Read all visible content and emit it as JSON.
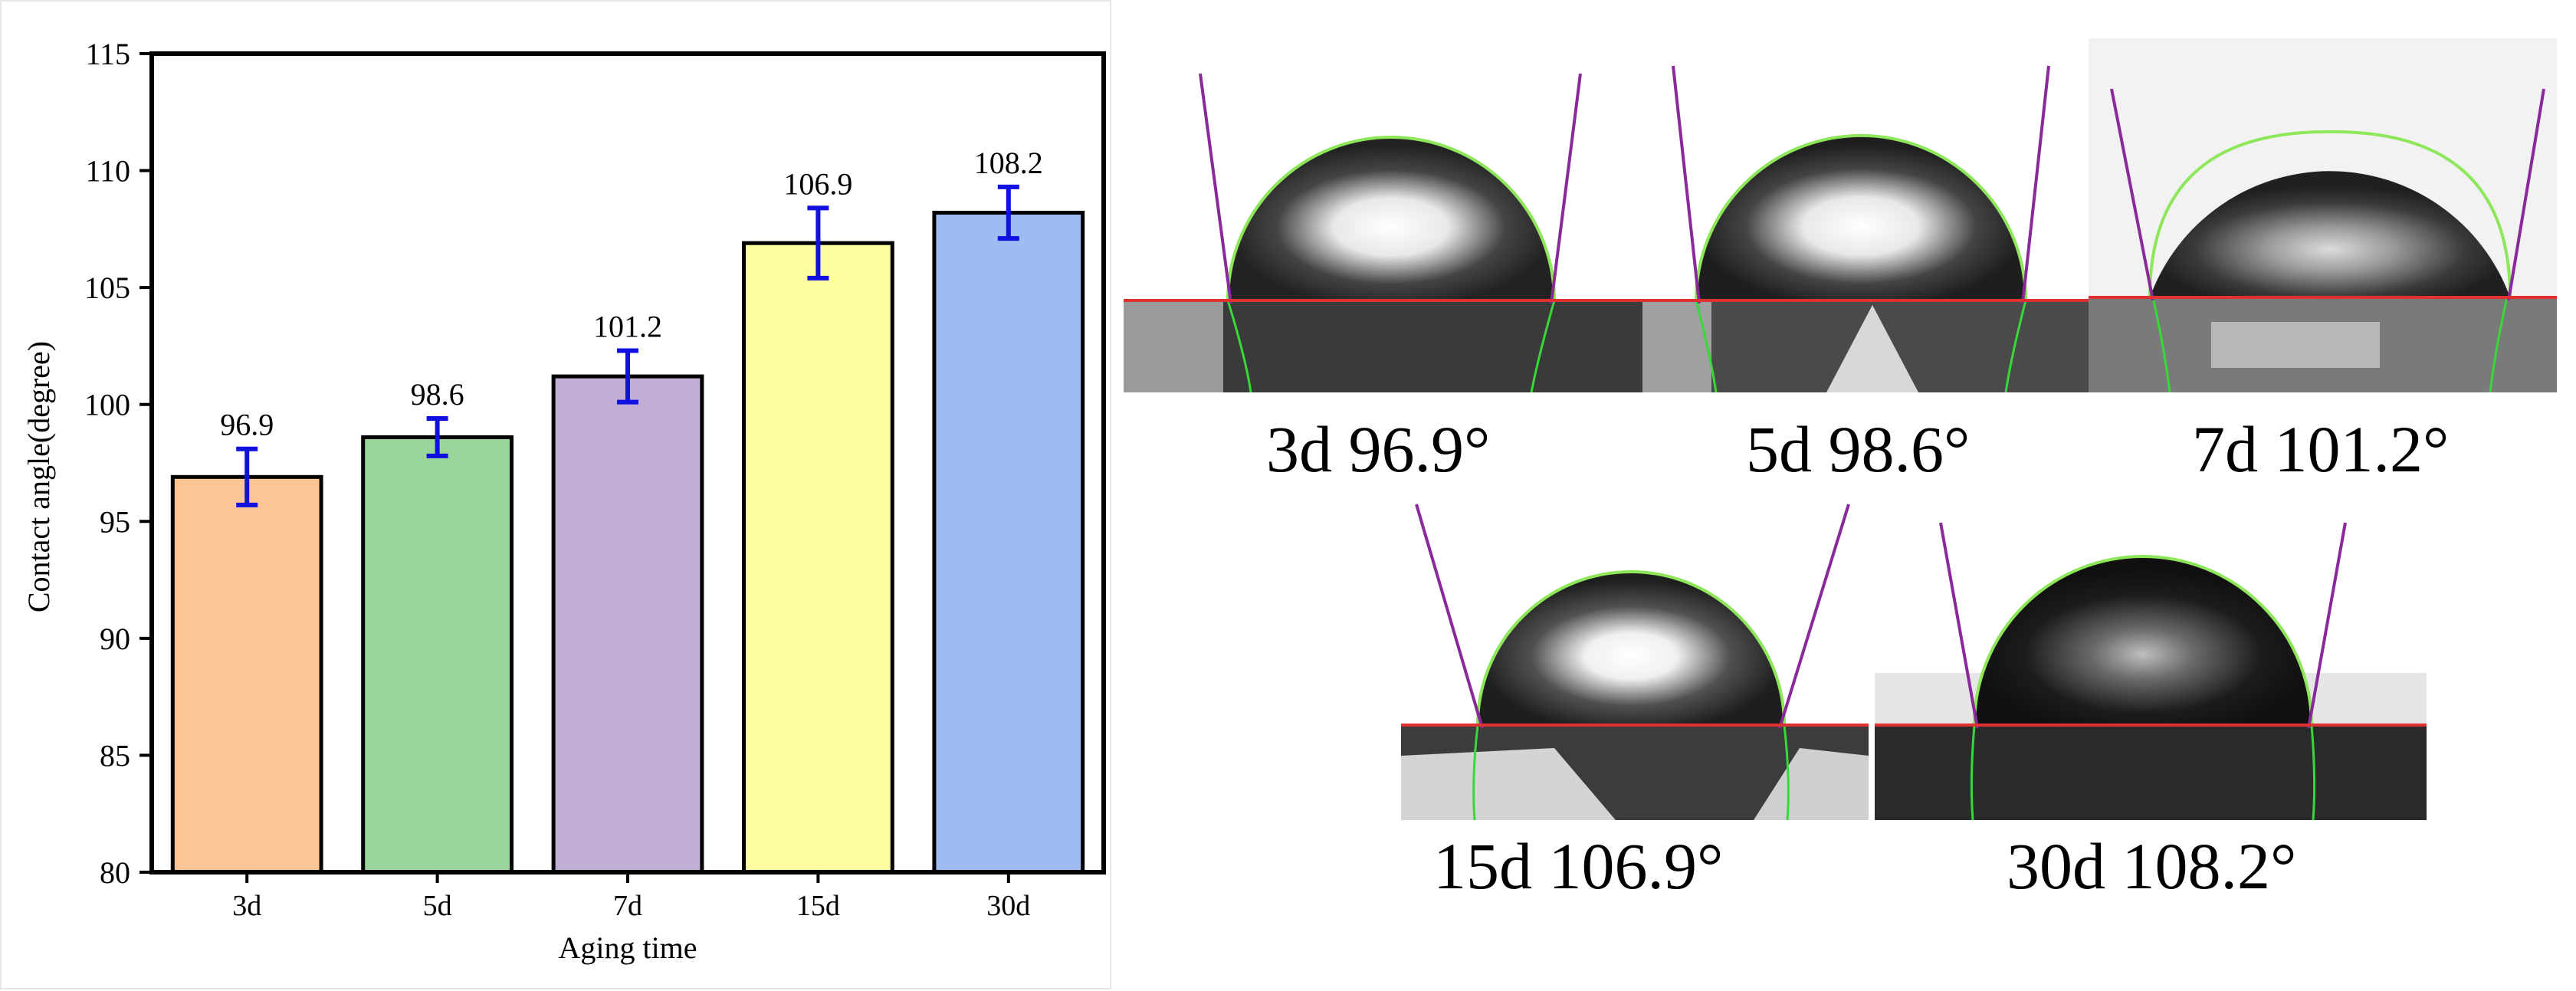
{
  "chart_data": {
    "type": "bar",
    "categories": [
      "3d",
      "5d",
      "7d",
      "15d",
      "30d"
    ],
    "values": [
      96.9,
      98.6,
      101.2,
      106.9,
      108.2
    ],
    "errors": [
      1.2,
      0.8,
      1.1,
      1.5,
      1.1
    ],
    "value_labels": [
      "96.9",
      "98.6",
      "101.2",
      "106.9",
      "108.2"
    ],
    "colors": [
      "#fbc595",
      "#9ad69a",
      "#c0aed6",
      "#fdfc9e",
      "#9dbdf2"
    ],
    "error_color": "#1010e0",
    "xlabel": "Aging time",
    "ylabel": "Contact angle(degree)",
    "ylim": [
      80,
      115
    ],
    "yticks": [
      80,
      85,
      90,
      95,
      100,
      105,
      110,
      115
    ],
    "grid": false,
    "legend": "none"
  },
  "photos": [
    {
      "caption": "3d 96.9°"
    },
    {
      "caption": "5d 98.6°"
    },
    {
      "caption": "7d 101.2°"
    },
    {
      "caption": "15d 106.9°"
    },
    {
      "caption": "30d 108.2°"
    }
  ]
}
